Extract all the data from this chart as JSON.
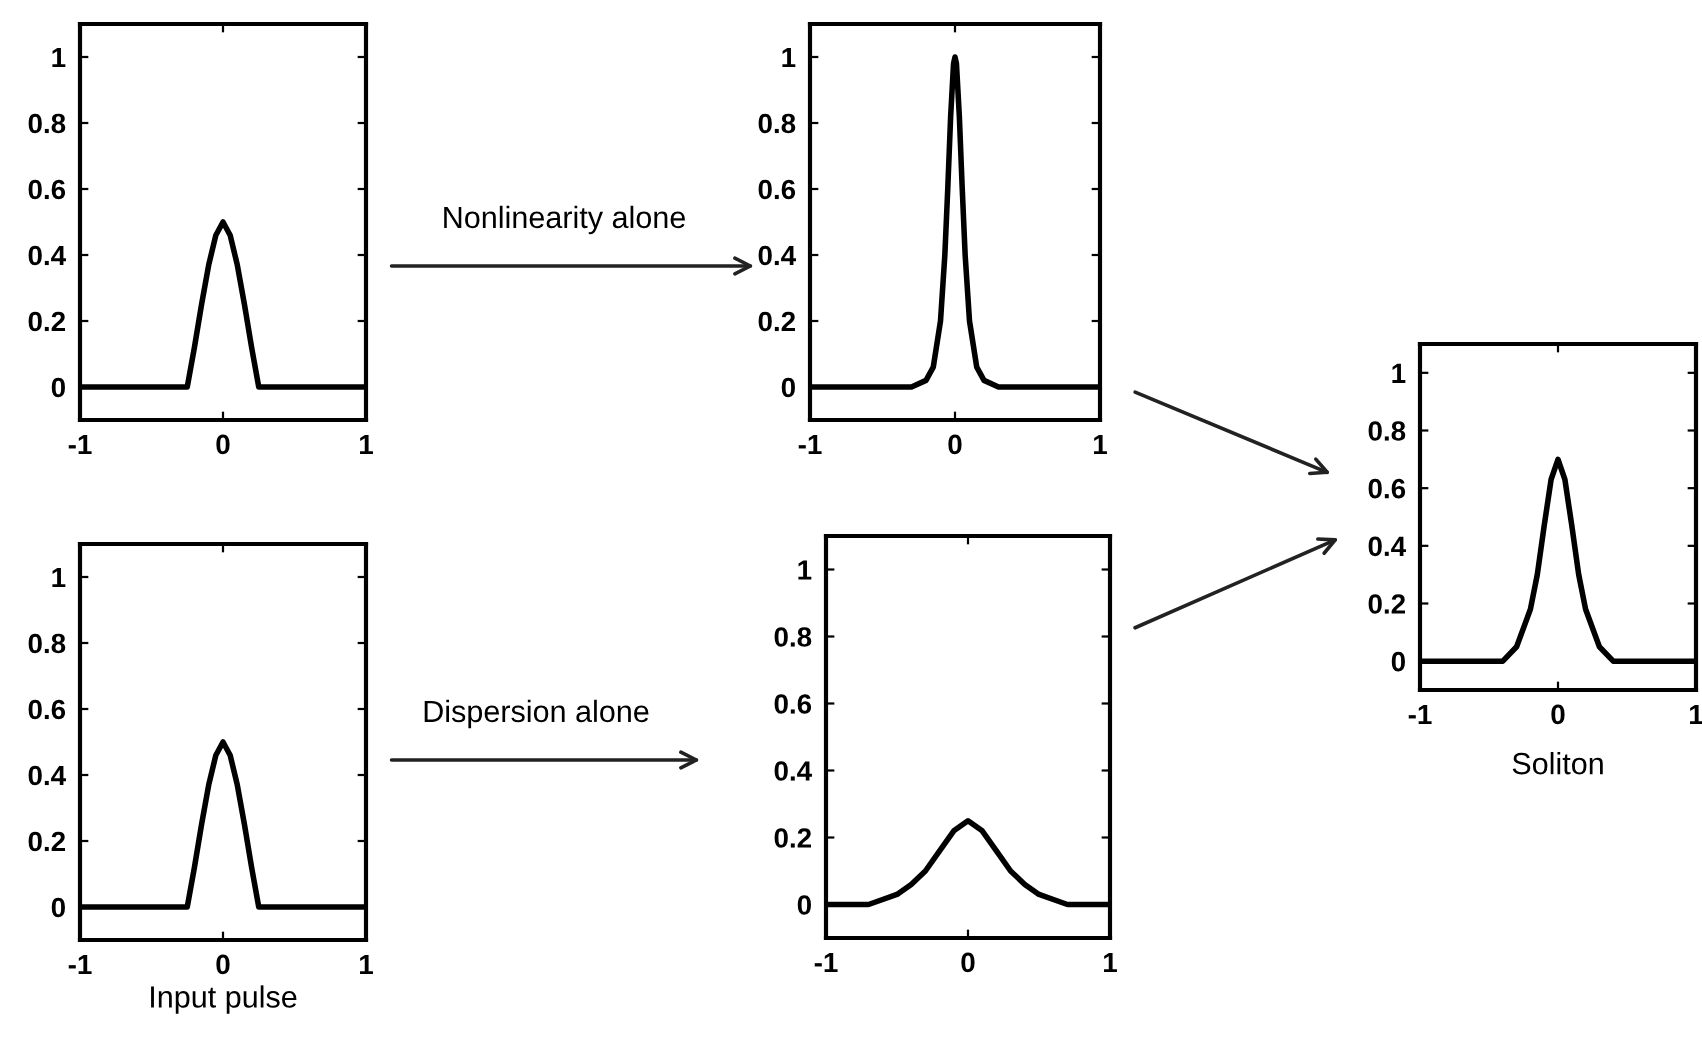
{
  "chart_data": [
    {
      "type": "line",
      "x": [
        -1,
        -0.25,
        -0.2,
        -0.15,
        -0.1,
        -0.05,
        0,
        0.05,
        0.1,
        0.15,
        0.2,
        0.25,
        1
      ],
      "values": [
        0,
        0,
        0.12,
        0.25,
        0.37,
        0.46,
        0.5,
        0.46,
        0.37,
        0.25,
        0.12,
        0,
        0
      ],
      "color": "#000000",
      "xlim": [
        -1,
        1
      ],
      "ylim": [
        -0.1,
        1.1
      ],
      "xticks": [
        -1,
        0,
        1
      ],
      "yticks": [
        0,
        0.2,
        0.4,
        0.6,
        0.8,
        1
      ],
      "grid": false
    },
    {
      "type": "line",
      "x": [
        -1,
        -0.3,
        -0.2,
        -0.15,
        -0.1,
        -0.07,
        -0.05,
        -0.03,
        -0.01,
        0,
        0.01,
        0.03,
        0.05,
        0.07,
        0.1,
        0.15,
        0.2,
        0.3,
        1
      ],
      "values": [
        0,
        0,
        0.02,
        0.06,
        0.2,
        0.4,
        0.6,
        0.82,
        0.98,
        1,
        0.98,
        0.82,
        0.6,
        0.4,
        0.2,
        0.06,
        0.02,
        0,
        0
      ],
      "color": "#000000",
      "xlim": [
        -1,
        1
      ],
      "ylim": [
        -0.1,
        1.1
      ],
      "xticks": [
        -1,
        0,
        1
      ],
      "yticks": [
        0,
        0.2,
        0.4,
        0.6,
        0.8,
        1
      ],
      "grid": false,
      "annotations": [
        "Nonlinearity alone"
      ]
    },
    {
      "type": "line",
      "x": [
        -1,
        -0.4,
        -0.3,
        -0.2,
        -0.15,
        -0.1,
        -0.05,
        0,
        0.05,
        0.1,
        0.15,
        0.2,
        0.3,
        0.4,
        1
      ],
      "values": [
        0,
        0,
        0.05,
        0.18,
        0.3,
        0.47,
        0.63,
        0.7,
        0.63,
        0.47,
        0.3,
        0.18,
        0.05,
        0,
        0
      ],
      "color": "#000000",
      "xlim": [
        -1,
        1
      ],
      "ylim": [
        -0.1,
        1.1
      ],
      "xticks": [
        -1,
        0,
        1
      ],
      "yticks": [
        0,
        0.2,
        0.4,
        0.6,
        0.8,
        1
      ],
      "grid": false,
      "xlabel": "Soliton"
    },
    {
      "type": "line",
      "x": [
        -1,
        -0.25,
        -0.2,
        -0.15,
        -0.1,
        -0.05,
        0,
        0.05,
        0.1,
        0.15,
        0.2,
        0.25,
        1
      ],
      "values": [
        0,
        0,
        0.12,
        0.25,
        0.37,
        0.46,
        0.5,
        0.46,
        0.37,
        0.25,
        0.12,
        0,
        0
      ],
      "color": "#000000",
      "xlim": [
        -1,
        1
      ],
      "ylim": [
        -0.1,
        1.1
      ],
      "xticks": [
        -1,
        0,
        1
      ],
      "yticks": [
        0,
        0.2,
        0.4,
        0.6,
        0.8,
        1
      ],
      "grid": false,
      "xlabel": "Input pulse"
    },
    {
      "type": "line",
      "x": [
        -1,
        -0.7,
        -0.5,
        -0.4,
        -0.3,
        -0.2,
        -0.1,
        0,
        0.1,
        0.2,
        0.3,
        0.4,
        0.5,
        0.7,
        1
      ],
      "values": [
        0,
        0,
        0.03,
        0.06,
        0.1,
        0.16,
        0.22,
        0.25,
        0.22,
        0.16,
        0.1,
        0.06,
        0.03,
        0,
        0
      ],
      "color": "#000000",
      "xlim": [
        -1,
        1
      ],
      "ylim": [
        -0.1,
        1.1
      ],
      "xticks": [
        -1,
        0,
        1
      ],
      "yticks": [
        0,
        0.2,
        0.4,
        0.6,
        0.8,
        1
      ],
      "grid": false,
      "annotations": [
        "Dispersion alone"
      ]
    }
  ]
}
